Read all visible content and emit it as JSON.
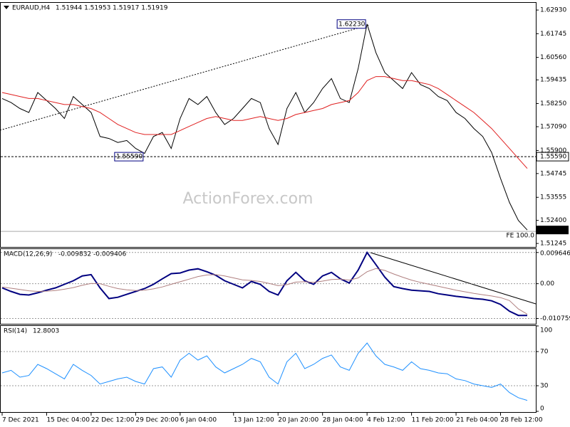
{
  "chart_data": [
    {
      "type": "line",
      "title": "EURAUD,H4",
      "subtitle": "1.51944 1.51953 1.51917 1.51919",
      "watermark": "ActionForex.com",
      "x": [
        0,
        1,
        2,
        3,
        4,
        5,
        6,
        7,
        8,
        9,
        10,
        11,
        12,
        13,
        14,
        15,
        16,
        17,
        18,
        19,
        20,
        21,
        22,
        23,
        24,
        25,
        26,
        27,
        28,
        29,
        30,
        31,
        32,
        33,
        34,
        35,
        36,
        37,
        38,
        39,
        40,
        41,
        42,
        43,
        44,
        45,
        46,
        47,
        48,
        49,
        50,
        51,
        52,
        53,
        54,
        55,
        56,
        57,
        58,
        59
      ],
      "xlim": [
        0,
        59
      ],
      "ylim": [
        1.5107,
        1.6329
      ],
      "grid": false,
      "yticks": [
        {
          "value": 1.6293,
          "label": "1.62930"
        },
        {
          "value": 1.61745,
          "label": "1.61745"
        },
        {
          "value": 1.6056,
          "label": "1.60560"
        },
        {
          "value": 1.59435,
          "label": "1.59435"
        },
        {
          "value": 1.5825,
          "label": "1.58250"
        },
        {
          "value": 1.5709,
          "label": "1.57090"
        },
        {
          "value": 1.559,
          "label": "1.55900"
        },
        {
          "value": 1.54745,
          "label": "1.54745"
        },
        {
          "value": 1.53555,
          "label": "1.53555"
        },
        {
          "value": 1.524,
          "label": "1.52400"
        },
        {
          "value": 1.51245,
          "label": "1.51245"
        }
      ],
      "series": [
        {
          "color": "#000000",
          "values": [
            1.585,
            1.583,
            1.58,
            1.578,
            1.588,
            1.584,
            1.58,
            1.575,
            1.586,
            1.582,
            1.578,
            1.566,
            1.565,
            1.563,
            1.564,
            1.56,
            1.5575,
            1.566,
            1.568,
            1.56,
            1.575,
            1.585,
            1.582,
            1.586,
            1.578,
            1.572,
            1.575,
            1.58,
            1.585,
            1.583,
            1.57,
            1.562,
            1.58,
            1.588,
            1.578,
            1.583,
            1.59,
            1.595,
            1.585,
            1.583,
            1.6,
            1.6223,
            1.608,
            1.598,
            1.594,
            1.59,
            1.598,
            1.592,
            1.59,
            1.586,
            1.584,
            1.578,
            1.575,
            1.57,
            1.566,
            1.558,
            1.545,
            1.533,
            1.524,
            1.51919
          ],
          "last_label": "1.51919"
        },
        {
          "color": "#e02020",
          "values": [
            1.588,
            1.587,
            1.586,
            1.585,
            1.585,
            1.584,
            1.583,
            1.582,
            1.582,
            1.581,
            1.58,
            1.578,
            1.575,
            1.572,
            1.57,
            1.568,
            1.567,
            1.567,
            1.567,
            1.567,
            1.569,
            1.571,
            1.573,
            1.575,
            1.576,
            1.575,
            1.574,
            1.574,
            1.575,
            1.576,
            1.575,
            1.574,
            1.575,
            1.577,
            1.578,
            1.579,
            1.58,
            1.582,
            1.583,
            1.584,
            1.588,
            1.594,
            1.596,
            1.596,
            1.595,
            1.594,
            1.594,
            1.593,
            1.592,
            1.59,
            1.587,
            1.584,
            1.581,
            1.578,
            1.574,
            1.57,
            1.565,
            1.56,
            1.555,
            1.55
          ]
        }
      ],
      "annotations": [
        {
          "label": "1.62230",
          "value": 1.6223,
          "x": 41
        },
        {
          "label": "1.55590",
          "value": 1.5559,
          "x": 16
        },
        {
          "label": "FE 100.0",
          "value": 1.5185
        }
      ]
    },
    {
      "type": "line",
      "title": "MACD(12,26,9)",
      "subtitle": "-0.009832 -0.009406",
      "x": [
        0,
        1,
        2,
        3,
        4,
        5,
        6,
        7,
        8,
        9,
        10,
        11,
        12,
        13,
        14,
        15,
        16,
        17,
        18,
        19,
        20,
        21,
        22,
        23,
        24,
        25,
        26,
        27,
        28,
        29,
        30,
        31,
        32,
        33,
        34,
        35,
        36,
        37,
        38,
        39,
        40,
        41,
        42,
        43,
        44,
        45,
        46,
        47,
        48,
        49,
        50,
        51,
        52,
        53,
        54,
        55,
        56,
        57,
        58,
        59
      ],
      "xlim": [
        0,
        59
      ],
      "ylim": [
        -0.0124,
        0.0107
      ],
      "grid": true,
      "yticks": [
        0.009646,
        {
          "value": 0,
          "label": "0.00"
        },
        -0.010759
      ],
      "series": [
        {
          "color": "#000080",
          "values": [
            -0.0013,
            -0.0024,
            -0.0033,
            -0.0035,
            -0.0028,
            -0.002,
            -0.0013,
            -0.0002,
            0.0009,
            0.0024,
            0.0028,
            -0.0013,
            -0.0046,
            -0.0042,
            -0.0033,
            -0.0024,
            -0.0015,
            -0.0002,
            0.0015,
            0.0031,
            0.0033,
            0.0042,
            0.0046,
            0.0037,
            0.0026,
            0.0009,
            -0.0002,
            -0.0013,
            0.0007,
            -0.0002,
            -0.0024,
            -0.0035,
            0.0009,
            0.0035,
            0.0009,
            -0.0002,
            0.0024,
            0.0035,
            0.0015,
            0.0002,
            0.0042,
            0.009646,
            0.0059,
            0.002,
            -0.0009,
            -0.0015,
            -0.002,
            -0.0022,
            -0.0024,
            -0.0031,
            -0.0035,
            -0.0039,
            -0.0042,
            -0.0046,
            -0.0048,
            -0.0053,
            -0.0064,
            -0.0085,
            -0.0098,
            -0.009832
          ]
        },
        {
          "color": "#b08080",
          "values": [
            -0.001,
            -0.0014,
            -0.0018,
            -0.0022,
            -0.0024,
            -0.0023,
            -0.0021,
            -0.0017,
            -0.0012,
            -0.0005,
            0.0001,
            0.0,
            -0.0008,
            -0.0015,
            -0.0019,
            -0.0021,
            -0.002,
            -0.0016,
            -0.001,
            -0.0002,
            0.0006,
            0.0014,
            0.0022,
            0.0027,
            0.0028,
            0.0024,
            0.0018,
            0.0012,
            0.001,
            0.0007,
            0.0001,
            -0.0006,
            -0.0003,
            0.0005,
            0.0006,
            0.0004,
            0.0008,
            0.0013,
            0.0014,
            0.0011,
            0.0018,
            0.0037,
            0.0047,
            0.0041,
            0.003,
            0.002,
            0.0011,
            0.0004,
            -0.0002,
            -0.0008,
            -0.0014,
            -0.002,
            -0.0025,
            -0.003,
            -0.0034,
            -0.0038,
            -0.0043,
            -0.0052,
            -0.0078,
            -0.009406
          ]
        }
      ]
    },
    {
      "type": "line",
      "title": "RSI(14)",
      "subtitle": "12.8003",
      "x": [
        0,
        1,
        2,
        3,
        4,
        5,
        6,
        7,
        8,
        9,
        10,
        11,
        12,
        13,
        14,
        15,
        16,
        17,
        18,
        19,
        20,
        21,
        22,
        23,
        24,
        25,
        26,
        27,
        28,
        29,
        30,
        31,
        32,
        33,
        34,
        35,
        36,
        37,
        38,
        39,
        40,
        41,
        42,
        43,
        44,
        45,
        46,
        47,
        48,
        49,
        50,
        51,
        52,
        53,
        54,
        55,
        56,
        57,
        58,
        59
      ],
      "xlim": [
        0,
        59
      ],
      "ylim": [
        0,
        100
      ],
      "grid": true,
      "yticks": [
        100,
        70,
        30,
        0
      ],
      "xticks": [
        {
          "value": 0,
          "label": "7 Dec 2021"
        },
        {
          "value": 5,
          "label": "15 Dec 04:00"
        },
        {
          "value": 10,
          "label": "22 Dec 12:00"
        },
        {
          "value": 15,
          "label": "29 Dec 20:00"
        },
        {
          "value": 20,
          "label": "6 Jan 04:00"
        },
        {
          "value": 26,
          "label": "13 Jan 12:00"
        },
        {
          "value": 31,
          "label": "20 Jan 20:00"
        },
        {
          "value": 36,
          "label": "28 Jan 04:00"
        },
        {
          "value": 41,
          "label": "4 Feb 12:00"
        },
        {
          "value": 46,
          "label": "11 Feb 20:00"
        },
        {
          "value": 51,
          "label": "21 Feb 04:00"
        },
        {
          "value": 56,
          "label": "28 Feb 12:00"
        }
      ],
      "series": [
        {
          "color": "#1e90ff",
          "values": [
            45,
            48,
            40,
            42,
            55,
            50,
            44,
            38,
            55,
            48,
            42,
            32,
            35,
            38,
            40,
            35,
            32,
            50,
            52,
            40,
            60,
            68,
            60,
            65,
            52,
            45,
            50,
            55,
            62,
            58,
            40,
            32,
            58,
            68,
            50,
            55,
            62,
            66,
            52,
            48,
            68,
            80,
            65,
            55,
            52,
            48,
            58,
            50,
            48,
            45,
            44,
            38,
            36,
            32,
            30,
            28,
            32,
            22,
            16,
            12.8003
          ]
        }
      ]
    }
  ]
}
